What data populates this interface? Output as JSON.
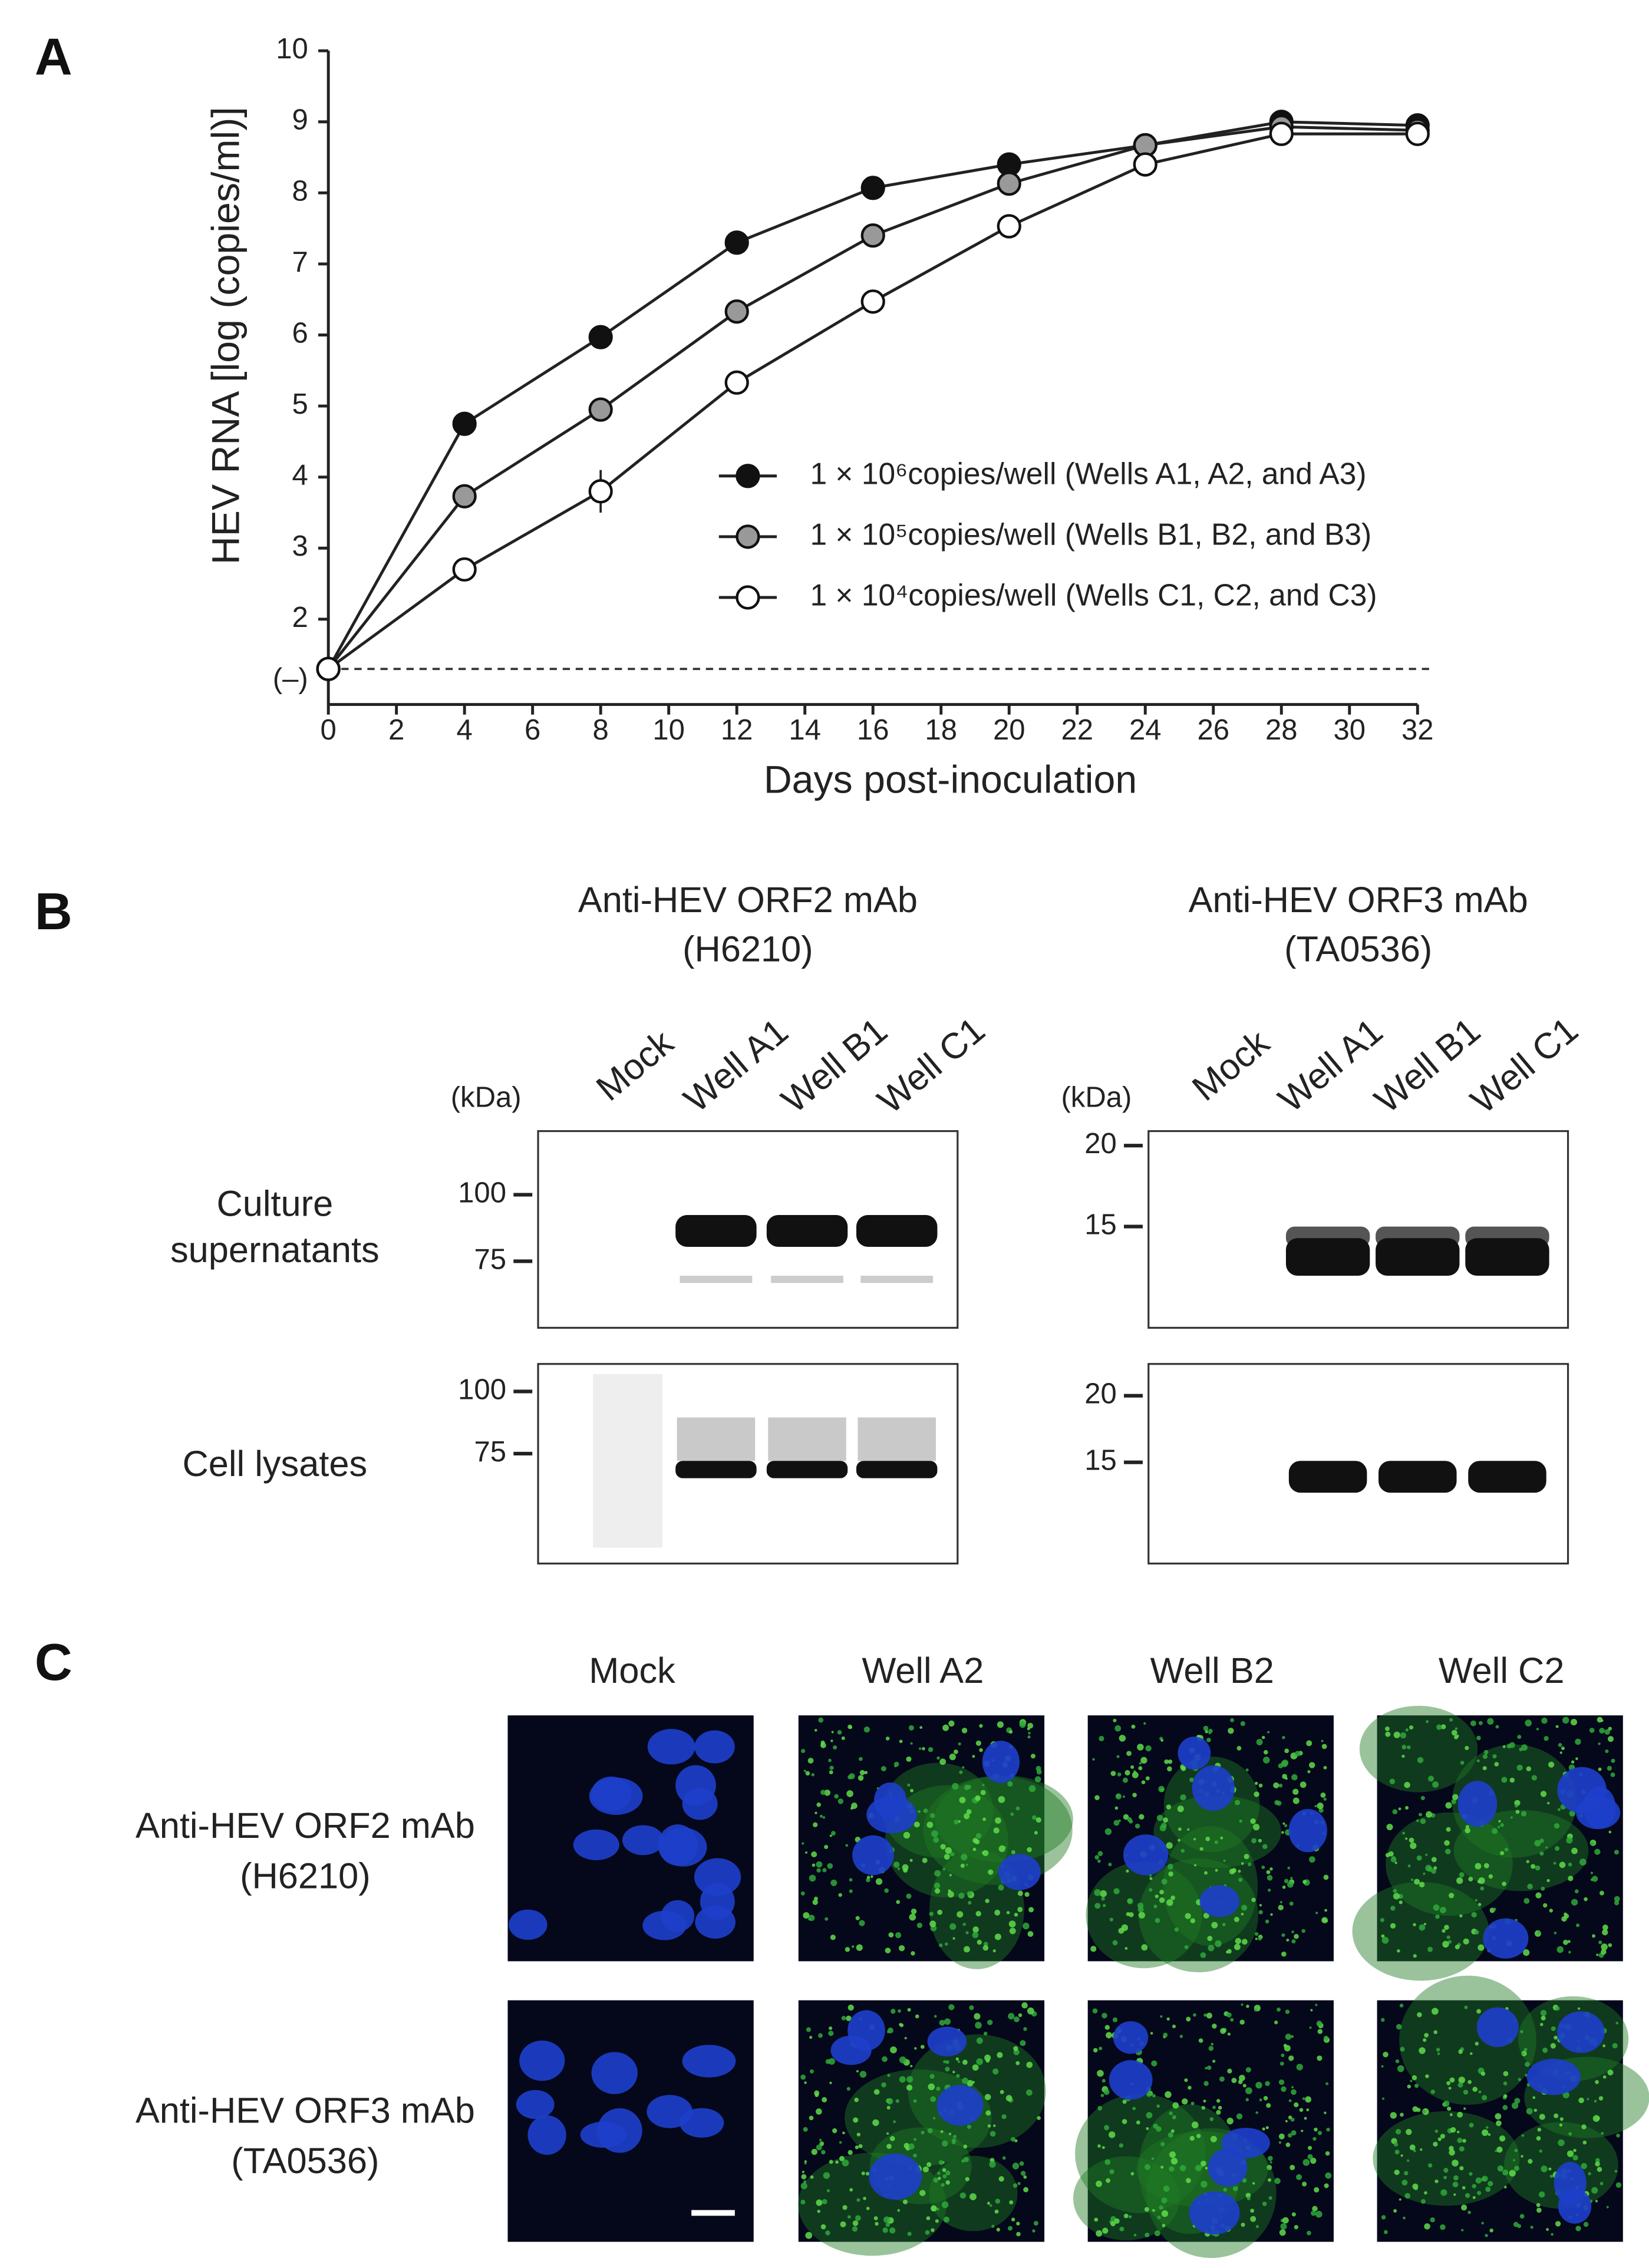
{
  "chart_data": {
    "type": "line",
    "x_label": "Days post-inoculation",
    "y_label": "HEV RNA [log (copies/ml)]",
    "x": [
      0,
      4,
      8,
      12,
      16,
      20,
      24,
      28,
      32
    ],
    "series": [
      {
        "name": "1 × 10⁶copies/well (Wells A1, A2, and A3)",
        "color": "#111111",
        "values": [
          1.3,
          4.75,
          5.97,
          7.3,
          8.07,
          8.4,
          8.67,
          9.0,
          8.95
        ],
        "errors": [
          0,
          0.05,
          0.05,
          0.12,
          0.05,
          0.05,
          0.05,
          0.05,
          0.05
        ]
      },
      {
        "name": "1 × 10⁵copies/well (Wells B1, B2, and B3)",
        "color": "#999999",
        "values": [
          1.3,
          3.73,
          4.95,
          6.33,
          7.4,
          8.13,
          8.67,
          8.93,
          8.88
        ],
        "errors": [
          0,
          0.05,
          0.1,
          0.12,
          0.15,
          0.05,
          0.15,
          0.05,
          0.05
        ]
      },
      {
        "name": "1 × 10⁴copies/well (Wells C1, C2, and C3)",
        "color": "#ffffff",
        "values": [
          1.3,
          2.7,
          3.8,
          5.33,
          6.47,
          7.53,
          8.4,
          8.83,
          8.83
        ],
        "errors": [
          0,
          0.08,
          0.3,
          0.05,
          0.1,
          0.05,
          0.05,
          0.05,
          0.05
        ]
      }
    ],
    "xlim": [
      0,
      32
    ],
    "xticks": [
      0,
      2,
      4,
      6,
      8,
      10,
      12,
      14,
      16,
      18,
      20,
      22,
      24,
      26,
      28,
      30,
      32
    ],
    "ylim": [
      0.8,
      10
    ],
    "yticks": [
      {
        "value": 1.3,
        "label": "(–)"
      },
      2,
      3,
      4,
      5,
      6,
      7,
      8,
      9,
      10
    ],
    "legend": "right"
  },
  "panel_labels": [
    "A",
    "B",
    "C"
  ],
  "blot": {
    "unit": "(kDa)",
    "rows": [
      [
        "Culture",
        "supernatants"
      ],
      [
        "Cell lysates"
      ]
    ],
    "antibodies": [
      {
        "title": "Anti-HEV ORF2 mAb",
        "clone": "(H6210)",
        "lanes": [
          "Mock",
          "Well A1",
          "Well B1",
          "Well C1"
        ],
        "markers": [
          [
            "100",
            "75"
          ],
          [
            "100",
            "75"
          ]
        ]
      },
      {
        "title": "Anti-HEV ORF3 mAb",
        "clone": "(TA0536)",
        "lanes": [
          "Mock",
          "Well A1",
          "Well B1",
          "Well C1"
        ],
        "markers": [
          [
            "20",
            "15"
          ],
          [
            "20",
            "15"
          ]
        ]
      }
    ]
  },
  "imaging": {
    "columns": [
      "Mock",
      "Well A2",
      "Well B2",
      "Well C2"
    ],
    "rows": [
      {
        "antibody": "Anti-HEV ORF2 mAb",
        "clone": "(H6210)"
      },
      {
        "antibody": "Anti-HEV ORF3 mAb",
        "clone": "(TA0536)"
      }
    ]
  }
}
